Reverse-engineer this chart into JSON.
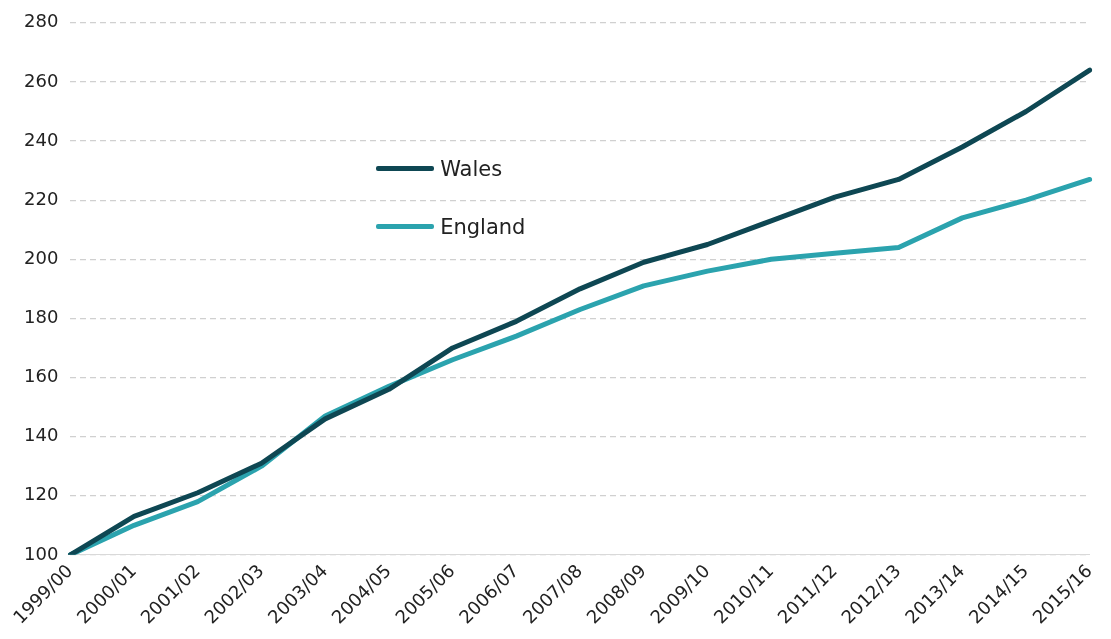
{
  "chart_data": {
    "type": "line",
    "categories": [
      "1999/00",
      "2000/01",
      "2001/02",
      "2002/03",
      "2003/04",
      "2004/05",
      "2005/06",
      "2006/07",
      "2007/08",
      "2008/09",
      "2009/10",
      "2010/11",
      "2011/12",
      "2012/13",
      "2013/14",
      "2014/15",
      "2015/16"
    ],
    "series": [
      {
        "name": "Wales",
        "color": "#0e4753",
        "values": [
          100,
          113,
          121,
          131,
          146,
          156,
          170,
          179,
          190,
          199,
          205,
          213,
          221,
          227,
          238,
          250,
          264
        ]
      },
      {
        "name": "England",
        "color": "#2ba3ae",
        "values": [
          100,
          110,
          118,
          130,
          147,
          157,
          166,
          174,
          183,
          191,
          196,
          200,
          202,
          204,
          214,
          220,
          227
        ]
      }
    ],
    "ylim": [
      100,
      280
    ],
    "yticks": [
      100,
      120,
      140,
      160,
      180,
      200,
      220,
      240,
      260,
      280
    ],
    "grid": "y",
    "legend": "top left",
    "marker": "none",
    "line_style": "solid"
  }
}
